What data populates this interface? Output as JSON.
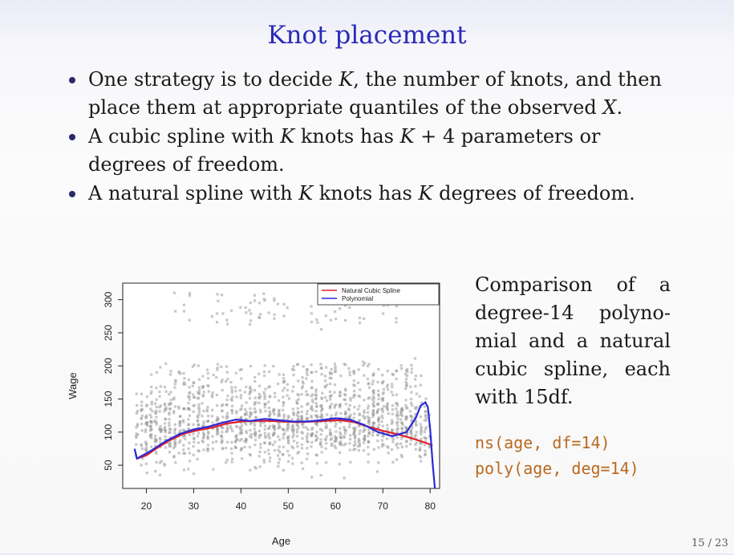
{
  "slide": {
    "title": "Knot placement",
    "bullets": [
      {
        "lines": [
          {
            "parts": [
              {
                "t": "One strategy is to decide "
              },
              {
                "t": "K",
                "math": true
              },
              {
                "t": ", the number of knots, and then"
              }
            ]
          },
          {
            "parts": [
              {
                "t": "place them at appropriate quantiles of the observed "
              },
              {
                "t": "X",
                "math": true
              },
              {
                "t": "."
              }
            ]
          }
        ]
      },
      {
        "lines": [
          {
            "parts": [
              {
                "t": "A cubic spline with "
              },
              {
                "t": "K",
                "math": true
              },
              {
                "t": " knots has "
              },
              {
                "t": "K",
                "math": true
              },
              {
                "t": " + 4 parameters or"
              }
            ]
          },
          {
            "parts": [
              {
                "t": "degrees of freedom."
              }
            ]
          }
        ]
      },
      {
        "lines": [
          {
            "parts": [
              {
                "t": "A natural spline with "
              },
              {
                "t": "K",
                "math": true
              },
              {
                "t": " knots has "
              },
              {
                "t": "K",
                "math": true
              },
              {
                "t": " degrees of freedom."
              }
            ]
          }
        ]
      }
    ],
    "caption_lines": [
      "Comparison of a",
      "degree-14 polyno-",
      "mial and a natural",
      "cubic spline, each",
      "with 15df."
    ],
    "code_lines": [
      "ns(age, df=14)",
      "poly(age, deg=14)"
    ],
    "page_number": "15 / 23"
  },
  "chart_data": {
    "type": "scatter",
    "xlabel": "Age",
    "ylabel": "Wage",
    "xlim": [
      15,
      82
    ],
    "ylim": [
      15,
      325
    ],
    "xticks": [
      20,
      30,
      40,
      50,
      60,
      70,
      80
    ],
    "yticks": [
      50,
      100,
      150,
      200,
      250,
      300
    ],
    "grid": false,
    "legend_position": "top-right",
    "point_color": "#9a9a9a",
    "series": [
      {
        "name": "Natural Cubic Spline",
        "type": "line",
        "color": "#e0202a",
        "x": [
          18,
          20,
          22,
          25,
          28,
          31,
          34,
          37,
          40,
          43,
          46,
          49,
          52,
          55,
          58,
          61,
          64,
          67,
          70,
          73,
          76,
          79,
          80.5
        ],
        "y": [
          60,
          65,
          75,
          88,
          98,
          103,
          107,
          113,
          116,
          117,
          117,
          116,
          115,
          116,
          117,
          118,
          115,
          108,
          102,
          97,
          91,
          84,
          80
        ]
      },
      {
        "name": "Polynomial",
        "type": "line",
        "color": "#2a2ad8",
        "x": [
          17.5,
          18,
          19,
          21,
          24,
          27,
          30,
          33,
          36,
          39,
          42,
          45,
          48,
          51,
          54,
          57,
          60,
          63,
          66,
          69,
          72,
          75,
          77,
          78,
          79,
          79.5,
          80,
          80.5,
          81
        ],
        "y": [
          75,
          60,
          64,
          72,
          86,
          97,
          104,
          108,
          114,
          119,
          117,
          120,
          118,
          116,
          116,
          118,
          121,
          119,
          111,
          100,
          94,
          100,
          122,
          140,
          145,
          138,
          105,
          55,
          15
        ]
      }
    ],
    "scatter_bands": [
      {
        "xmin": 18,
        "xmax": 80,
        "ymean": 110,
        "ysd": 28,
        "count": 1300
      },
      {
        "xmin": 21,
        "xmax": 77,
        "ymin": 150,
        "ymax": 205,
        "count": 220
      },
      {
        "xmin": 25,
        "xmax": 73,
        "ymin": 262,
        "ymax": 312,
        "count": 75
      }
    ]
  }
}
